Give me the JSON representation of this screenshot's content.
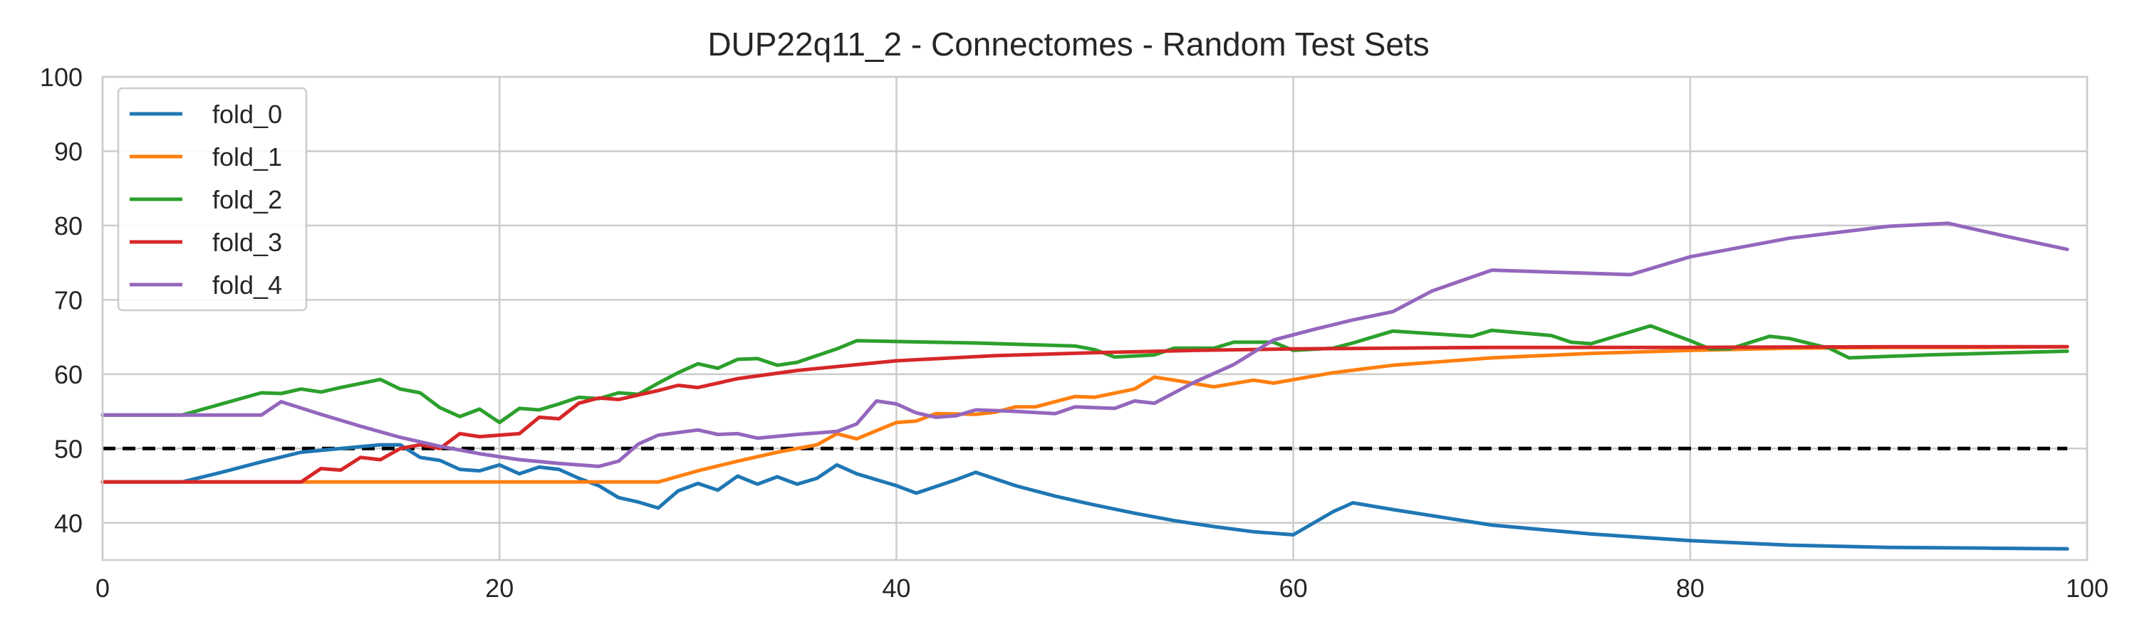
{
  "chart_data": {
    "type": "line",
    "title": "DUP22q11_2 - Connectomes - Random Test Sets",
    "xlabel": "",
    "ylabel": "",
    "xlim": [
      0,
      100
    ],
    "ylim": [
      35,
      100
    ],
    "x_ticks": [
      "0",
      "20",
      "40",
      "60",
      "80",
      "100"
    ],
    "y_ticks": [
      "40",
      "50",
      "60",
      "70",
      "80",
      "90",
      "100"
    ],
    "grid": true,
    "legend_position": "top-left",
    "reference_line": {
      "y": 50,
      "style": "dashed",
      "color": "#000000"
    },
    "series": [
      {
        "name": "fold_0",
        "color": "#1f77b4",
        "points": [
          [
            0,
            45.5
          ],
          [
            4,
            45.5
          ],
          [
            6,
            46.8
          ],
          [
            8,
            48.2
          ],
          [
            10,
            49.5
          ],
          [
            12,
            50
          ],
          [
            14,
            50.5
          ],
          [
            15,
            50.5
          ],
          [
            16,
            48.8
          ],
          [
            17,
            48.4
          ],
          [
            18,
            47.2
          ],
          [
            19,
            47
          ],
          [
            20,
            47.8
          ],
          [
            21,
            46.6
          ],
          [
            22,
            47.5
          ],
          [
            23,
            47.2
          ],
          [
            24,
            46
          ],
          [
            25,
            45
          ],
          [
            26,
            43.4
          ],
          [
            27,
            42.8
          ],
          [
            28,
            42
          ],
          [
            29,
            44.3
          ],
          [
            30,
            45.3
          ],
          [
            31,
            44.4
          ],
          [
            32,
            46.3
          ],
          [
            33,
            45.2
          ],
          [
            34,
            46.2
          ],
          [
            35,
            45.2
          ],
          [
            36,
            46
          ],
          [
            37,
            47.8
          ],
          [
            38,
            46.6
          ],
          [
            40,
            45
          ],
          [
            41,
            44
          ],
          [
            43,
            45.8
          ],
          [
            44,
            46.8
          ],
          [
            46,
            45
          ],
          [
            48,
            43.6
          ],
          [
            50,
            42.4
          ],
          [
            52,
            41.3
          ],
          [
            54,
            40.3
          ],
          [
            56,
            39.5
          ],
          [
            58,
            38.8
          ],
          [
            60,
            38.4
          ],
          [
            62,
            41.5
          ],
          [
            63,
            42.7
          ],
          [
            65,
            41.8
          ],
          [
            70,
            39.7
          ],
          [
            75,
            38.5
          ],
          [
            80,
            37.6
          ],
          [
            85,
            37
          ],
          [
            90,
            36.7
          ],
          [
            95,
            36.6
          ],
          [
            99,
            36.5
          ]
        ]
      },
      {
        "name": "fold_1",
        "color": "#ff7f0e",
        "points": [
          [
            0,
            45.5
          ],
          [
            28,
            45.5
          ],
          [
            30,
            47
          ],
          [
            32,
            48.3
          ],
          [
            34,
            49.5
          ],
          [
            36,
            50.5
          ],
          [
            37,
            52
          ],
          [
            38,
            51.3
          ],
          [
            40,
            53.5
          ],
          [
            41,
            53.7
          ],
          [
            42,
            54.7
          ],
          [
            44,
            54.6
          ],
          [
            45,
            54.9
          ],
          [
            46,
            55.6
          ],
          [
            47,
            55.6
          ],
          [
            49,
            57
          ],
          [
            50,
            56.9
          ],
          [
            52,
            58
          ],
          [
            53,
            59.6
          ],
          [
            54,
            59.2
          ],
          [
            56,
            58.3
          ],
          [
            58,
            59.2
          ],
          [
            59,
            58.8
          ],
          [
            62,
            60.2
          ],
          [
            65,
            61.2
          ],
          [
            70,
            62.2
          ],
          [
            75,
            62.8
          ],
          [
            80,
            63.2
          ],
          [
            85,
            63.5
          ],
          [
            90,
            63.6
          ],
          [
            95,
            63.6
          ],
          [
            99,
            63.7
          ]
        ]
      },
      {
        "name": "fold_2",
        "color": "#2ca02c",
        "points": [
          [
            0,
            54.5
          ],
          [
            4,
            54.5
          ],
          [
            6,
            56
          ],
          [
            8,
            57.5
          ],
          [
            9,
            57.4
          ],
          [
            10,
            58
          ],
          [
            11,
            57.6
          ],
          [
            12,
            58.2
          ],
          [
            14,
            59.3
          ],
          [
            15,
            58
          ],
          [
            16,
            57.5
          ],
          [
            17,
            55.5
          ],
          [
            18,
            54.3
          ],
          [
            19,
            55.3
          ],
          [
            20,
            53.5
          ],
          [
            21,
            55.4
          ],
          [
            22,
            55.2
          ],
          [
            23,
            56
          ],
          [
            24,
            56.9
          ],
          [
            25,
            56.7
          ],
          [
            26,
            57.5
          ],
          [
            27,
            57.3
          ],
          [
            28,
            58.8
          ],
          [
            29,
            60.2
          ],
          [
            30,
            61.4
          ],
          [
            31,
            60.8
          ],
          [
            32,
            62
          ],
          [
            33,
            62.1
          ],
          [
            34,
            61.2
          ],
          [
            35,
            61.6
          ],
          [
            37,
            63.4
          ],
          [
            38,
            64.5
          ],
          [
            44,
            64.2
          ],
          [
            49,
            63.8
          ],
          [
            50,
            63.3
          ],
          [
            51,
            62.3
          ],
          [
            53,
            62.6
          ],
          [
            54,
            63.5
          ],
          [
            56,
            63.5
          ],
          [
            57,
            64.3
          ],
          [
            59,
            64.3
          ],
          [
            60,
            63.2
          ],
          [
            62,
            63.5
          ],
          [
            63,
            64.2
          ],
          [
            65,
            65.8
          ],
          [
            69,
            65.1
          ],
          [
            70,
            65.9
          ],
          [
            73,
            65.2
          ],
          [
            74,
            64.3
          ],
          [
            75,
            64.1
          ],
          [
            78,
            66.5
          ],
          [
            80,
            64.5
          ],
          [
            81,
            63.4
          ],
          [
            82,
            63.4
          ],
          [
            84,
            65.1
          ],
          [
            85,
            64.8
          ],
          [
            87,
            63.5
          ],
          [
            88,
            62.2
          ],
          [
            92,
            62.6
          ],
          [
            99,
            63.1
          ]
        ]
      },
      {
        "name": "fold_3",
        "color": "#d62728",
        "points": [
          [
            0,
            45.5
          ],
          [
            10,
            45.5
          ],
          [
            11,
            47.3
          ],
          [
            12,
            47.1
          ],
          [
            13,
            48.8
          ],
          [
            14,
            48.5
          ],
          [
            15,
            50
          ],
          [
            16,
            50.5
          ],
          [
            17,
            50
          ],
          [
            18,
            52
          ],
          [
            19,
            51.6
          ],
          [
            21,
            52
          ],
          [
            22,
            54.2
          ],
          [
            23,
            54
          ],
          [
            24,
            56.1
          ],
          [
            25,
            56.8
          ],
          [
            26,
            56.6
          ],
          [
            28,
            57.8
          ],
          [
            29,
            58.5
          ],
          [
            30,
            58.2
          ],
          [
            32,
            59.4
          ],
          [
            35,
            60.5
          ],
          [
            40,
            61.8
          ],
          [
            45,
            62.5
          ],
          [
            50,
            62.9
          ],
          [
            55,
            63.2
          ],
          [
            60,
            63.4
          ],
          [
            70,
            63.6
          ],
          [
            80,
            63.6
          ],
          [
            90,
            63.7
          ],
          [
            99,
            63.7
          ]
        ]
      },
      {
        "name": "fold_4",
        "color": "#9467bd",
        "points": [
          [
            0,
            54.5
          ],
          [
            8,
            54.5
          ],
          [
            9,
            56.3
          ],
          [
            11,
            54.6
          ],
          [
            13,
            53
          ],
          [
            15,
            51.5
          ],
          [
            17,
            50.3
          ],
          [
            19,
            49.3
          ],
          [
            21,
            48.5
          ],
          [
            23,
            48
          ],
          [
            25,
            47.6
          ],
          [
            26,
            48.3
          ],
          [
            27,
            50.6
          ],
          [
            28,
            51.8
          ],
          [
            30,
            52.5
          ],
          [
            31,
            51.9
          ],
          [
            32,
            52
          ],
          [
            33,
            51.4
          ],
          [
            35,
            51.9
          ],
          [
            37,
            52.3
          ],
          [
            38,
            53.3
          ],
          [
            39,
            56.4
          ],
          [
            40,
            56
          ],
          [
            41,
            54.8
          ],
          [
            42,
            54.2
          ],
          [
            43,
            54.4
          ],
          [
            44,
            55.2
          ],
          [
            45,
            55.1
          ],
          [
            46,
            55
          ],
          [
            48,
            54.7
          ],
          [
            49,
            55.6
          ],
          [
            51,
            55.4
          ],
          [
            52,
            56.4
          ],
          [
            53,
            56.1
          ],
          [
            55,
            58.9
          ],
          [
            57,
            61.3
          ],
          [
            59,
            64.6
          ],
          [
            61,
            66
          ],
          [
            63,
            67.3
          ],
          [
            65,
            68.4
          ],
          [
            67,
            71.2
          ],
          [
            70,
            74
          ],
          [
            77,
            73.4
          ],
          [
            80,
            75.8
          ],
          [
            85,
            78.3
          ],
          [
            90,
            79.9
          ],
          [
            93,
            80.3
          ],
          [
            96,
            78.5
          ],
          [
            99,
            76.8
          ]
        ]
      }
    ]
  }
}
